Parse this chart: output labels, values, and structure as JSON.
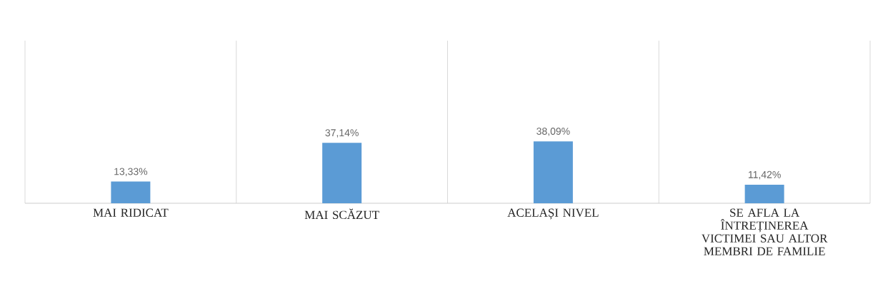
{
  "chart_data": {
    "type": "bar",
    "categories": [
      "MAI RIDICAT",
      "MAI SCĂZUT",
      "ACELAȘI NIVEL",
      "SE AFLA LA ÎNTREȚINEREA VICTIMEI SAU ALTOR MEMBRI DE FAMILIE"
    ],
    "values": [
      13.33,
      37.14,
      38.09,
      11.42
    ],
    "value_labels": [
      "13,33%",
      "37,14%",
      "38,09%",
      "11,42%"
    ],
    "color": "#5b9bd5",
    "ylim": [
      0,
      100
    ],
    "grid": "x",
    "tick_labels": "x"
  }
}
